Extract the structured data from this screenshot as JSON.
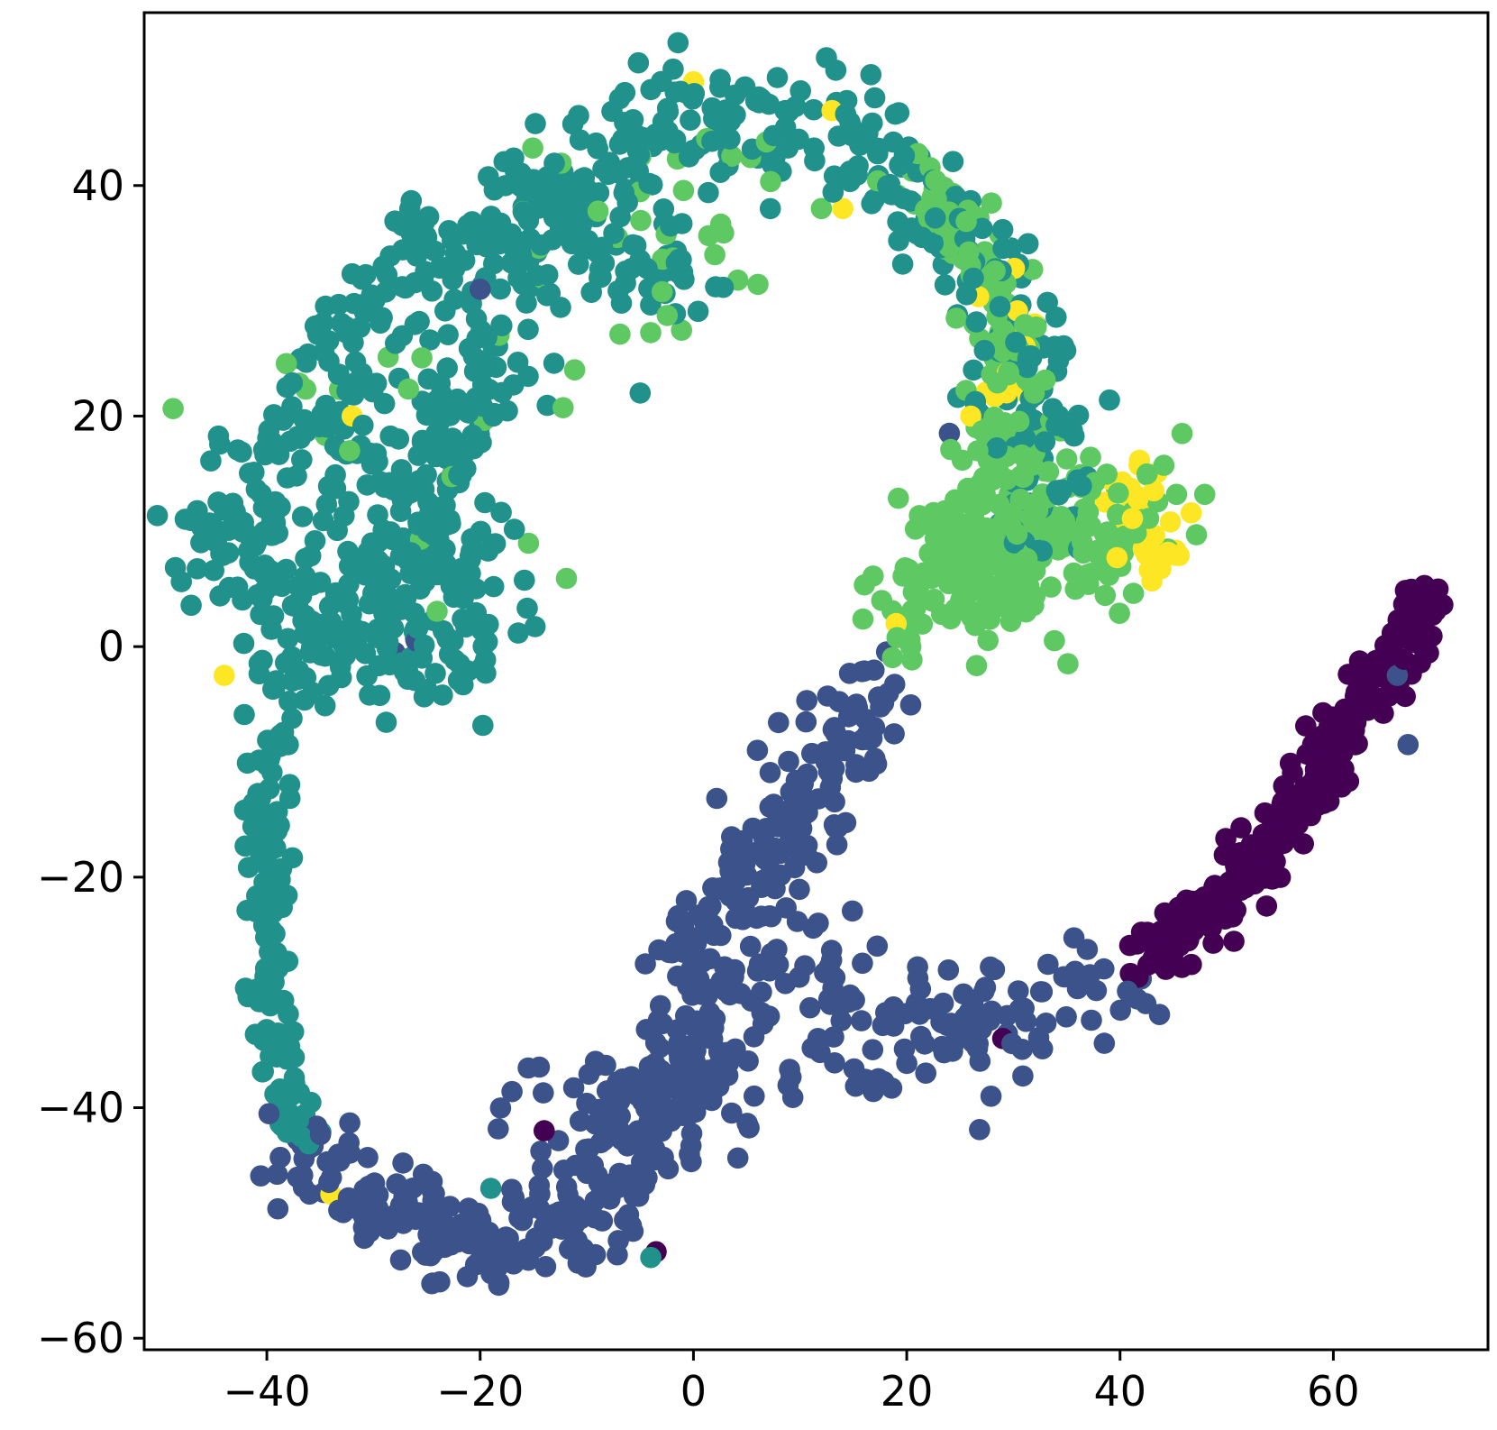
{
  "chart_data": {
    "type": "scatter",
    "title": "",
    "xlabel": "",
    "ylabel": "",
    "xlim": [
      -51.5,
      74.5
    ],
    "ylim": [
      -61,
      55
    ],
    "x_ticks": [
      -40,
      -20,
      0,
      20,
      40,
      60
    ],
    "y_ticks": [
      -60,
      -40,
      -20,
      0,
      20,
      40
    ],
    "x_tick_labels": [
      "−40",
      "−20",
      "0",
      "20",
      "40",
      "60"
    ],
    "y_tick_labels": [
      "−60",
      "−40",
      "−20",
      "0",
      "20",
      "40"
    ],
    "grid": false,
    "legend": "none",
    "colormap": "viridis",
    "class_colors": [
      "#440154",
      "#3b528b",
      "#21918c",
      "#5ec962",
      "#fde725"
    ],
    "marker_radius_data": 1.0,
    "paths": [
      {
        "class": 2,
        "spread": 2.6,
        "count": 520,
        "points": [
          [
            -44,
            12
          ],
          [
            -42,
            6
          ],
          [
            -40,
            2
          ],
          [
            -38,
            -2
          ],
          [
            -34,
            0
          ],
          [
            -30,
            4
          ],
          [
            -26,
            10
          ],
          [
            -24,
            16
          ],
          [
            -22,
            20
          ],
          [
            -19,
            26
          ],
          [
            -15,
            30
          ],
          [
            -14,
            36
          ],
          [
            -10,
            40
          ],
          [
            -6,
            44
          ],
          [
            -2,
            48
          ],
          [
            2,
            44
          ],
          [
            6,
            46
          ],
          [
            10,
            43
          ],
          [
            14,
            45
          ],
          [
            18,
            41
          ],
          [
            22,
            38
          ],
          [
            27,
            34
          ],
          [
            30,
            29
          ],
          [
            31,
            24
          ],
          [
            33,
            18
          ],
          [
            32,
            10
          ]
        ]
      },
      {
        "class": 2,
        "spread": 3.0,
        "count": 260,
        "points": [
          [
            -44,
            10
          ],
          [
            -40,
            16
          ],
          [
            -36,
            22
          ],
          [
            -32,
            20
          ],
          [
            -28,
            16
          ],
          [
            -24,
            10
          ],
          [
            -22,
            4
          ],
          [
            -24,
            -2
          ],
          [
            -30,
            2
          ],
          [
            -36,
            4
          ],
          [
            -42,
            8
          ]
        ]
      },
      {
        "class": 2,
        "spread": 2.4,
        "count": 160,
        "points": [
          [
            -34,
            24
          ],
          [
            -30,
            30
          ],
          [
            -26,
            36
          ],
          [
            -22,
            32
          ],
          [
            -18,
            36
          ],
          [
            -14,
            40
          ],
          [
            -10,
            34
          ],
          [
            -6,
            34
          ],
          [
            -2,
            32
          ],
          [
            0,
            34
          ]
        ]
      },
      {
        "class": 2,
        "spread": 0.9,
        "count": 140,
        "points": [
          [
            -39,
            -7
          ],
          [
            -40,
            -12
          ],
          [
            -40,
            -18
          ],
          [
            -40,
            -24
          ],
          [
            -40,
            -30
          ],
          [
            -39,
            -35
          ],
          [
            -38,
            -40
          ],
          [
            -36,
            -44
          ]
        ]
      },
      {
        "class": 3,
        "spread": 2.6,
        "count": 260,
        "points": [
          [
            20,
            10
          ],
          [
            24,
            8
          ],
          [
            28,
            6
          ],
          [
            32,
            6
          ],
          [
            36,
            8
          ],
          [
            40,
            9
          ],
          [
            42,
            12
          ],
          [
            30,
            14
          ],
          [
            24,
            4
          ],
          [
            20,
            3
          ],
          [
            22,
            6
          ],
          [
            32,
            10
          ]
        ]
      },
      {
        "class": 3,
        "spread": 1.6,
        "count": 120,
        "points": [
          [
            20,
            40
          ],
          [
            24,
            37
          ],
          [
            27,
            34
          ],
          [
            29,
            30
          ],
          [
            30,
            26
          ],
          [
            29,
            22
          ],
          [
            30,
            18
          ],
          [
            28,
            15
          ]
        ]
      },
      {
        "class": 3,
        "spread": 5.0,
        "count": 50,
        "points": [
          [
            -40,
            12
          ],
          [
            -30,
            20
          ],
          [
            -20,
            28
          ],
          [
            -10,
            40
          ],
          [
            0,
            44
          ],
          [
            10,
            42
          ],
          [
            -25,
            6
          ]
        ]
      },
      {
        "class": 1,
        "spread": 2.2,
        "count": 440,
        "points": [
          [
            18,
            -4
          ],
          [
            14,
            -8
          ],
          [
            10,
            -12
          ],
          [
            8,
            -16
          ],
          [
            6,
            -20
          ],
          [
            2,
            -22
          ],
          [
            0,
            -26
          ],
          [
            2,
            -30
          ],
          [
            0,
            -36
          ],
          [
            -4,
            -40
          ],
          [
            -6,
            -44
          ],
          [
            -8,
            -48
          ],
          [
            -12,
            -50
          ],
          [
            -18,
            -52
          ],
          [
            -24,
            -50
          ],
          [
            -30,
            -48
          ],
          [
            -34,
            -46
          ],
          [
            -37,
            -44
          ]
        ]
      },
      {
        "class": 1,
        "spread": 2.6,
        "count": 220,
        "points": [
          [
            4,
            -18
          ],
          [
            8,
            -22
          ],
          [
            6,
            -28
          ],
          [
            10,
            -30
          ],
          [
            12,
            -28
          ],
          [
            16,
            -30
          ],
          [
            18,
            -32
          ],
          [
            22,
            -33
          ],
          [
            28,
            -33
          ],
          [
            34,
            -32
          ],
          [
            38,
            -31
          ],
          [
            40,
            -30
          ],
          [
            -10,
            -40
          ],
          [
            -6,
            -38
          ],
          [
            -2,
            -42
          ],
          [
            -14,
            -38
          ]
        ]
      },
      {
        "class": 0,
        "spread": 1.2,
        "count": 320,
        "points": [
          [
            42,
            -27
          ],
          [
            47,
            -24
          ],
          [
            52,
            -20
          ],
          [
            55,
            -16
          ],
          [
            58,
            -12
          ],
          [
            60,
            -9
          ],
          [
            62,
            -6
          ],
          [
            64,
            -3
          ],
          [
            66,
            0
          ],
          [
            68,
            3
          ],
          [
            69,
            5
          ]
        ]
      },
      {
        "class": 4,
        "spread": 1.6,
        "count": 36,
        "points": [
          [
            40,
            14
          ],
          [
            42,
            12
          ],
          [
            43,
            10
          ],
          [
            42,
            8
          ],
          [
            44,
            11
          ]
        ]
      },
      {
        "class": 4,
        "spread": 2.0,
        "count": 14,
        "points": [
          [
            26,
            34
          ],
          [
            29,
            26
          ],
          [
            30,
            20
          ],
          [
            32,
            24
          ],
          [
            26,
            20
          ]
        ]
      }
    ],
    "extra_points": [
      {
        "class": 4,
        "x": -44,
        "y": -2.5
      },
      {
        "class": 4,
        "x": -32,
        "y": 20
      },
      {
        "class": 4,
        "x": -34,
        "y": -47.5
      },
      {
        "class": 4,
        "x": 0,
        "y": 49
      },
      {
        "class": 4,
        "x": 13,
        "y": 46.5
      },
      {
        "class": 4,
        "x": 14,
        "y": 38
      },
      {
        "class": 4,
        "x": 26,
        "y": 20
      },
      {
        "class": 4,
        "x": 19,
        "y": 2
      },
      {
        "class": 4,
        "x": 32,
        "y": 28
      },
      {
        "class": 2,
        "x": -5,
        "y": 22
      },
      {
        "class": 1,
        "x": 6,
        "y": -9
      },
      {
        "class": 1,
        "x": 24,
        "y": 18.5
      },
      {
        "class": 1,
        "x": -20,
        "y": 31
      },
      {
        "class": 1,
        "x": -28,
        "y": -0.5
      },
      {
        "class": 1,
        "x": -26,
        "y": 0.5
      },
      {
        "class": 0,
        "x": -14,
        "y": -42
      },
      {
        "class": 0,
        "x": 29,
        "y": -34
      },
      {
        "class": 0,
        "x": -3.5,
        "y": -52.5
      },
      {
        "class": 2,
        "x": -4,
        "y": -53
      },
      {
        "class": 2,
        "x": -19,
        "y": -47
      },
      {
        "class": 1,
        "x": 66,
        "y": -2.5
      },
      {
        "class": 1,
        "x": 67,
        "y": -8.5
      },
      {
        "class": 3,
        "x": 2,
        "y": 34
      },
      {
        "class": 3,
        "x": 12,
        "y": 38
      }
    ]
  }
}
